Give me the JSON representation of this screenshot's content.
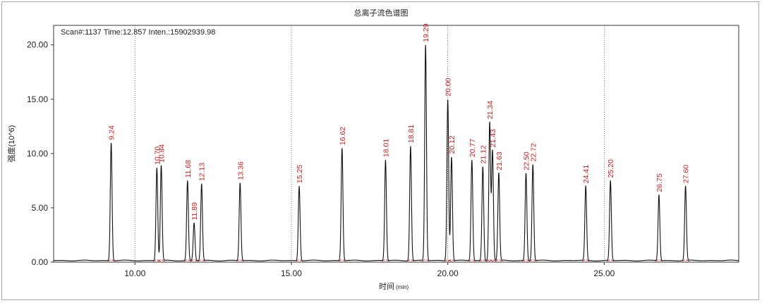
{
  "chart_data": {
    "type": "line",
    "title": "总离子流色谱图",
    "scan_info": "Scan#:1137  Time:12.857  Inten.:15902939.98",
    "xlabel": "时间",
    "xlabel_unit": "(min)",
    "ylabel": "强度(10^6)",
    "xlim": [
      7.4,
      29.3
    ],
    "ylim": [
      0,
      21.8
    ],
    "x_ticks": [
      10,
      15,
      20,
      25
    ],
    "x_tick_labels": [
      "10.00",
      "15.00",
      "20.00",
      "25.00"
    ],
    "y_ticks": [
      0,
      5,
      10,
      15,
      20
    ],
    "y_tick_labels": [
      "0.00",
      "5.00",
      "10.00",
      "15.00",
      "20.00"
    ],
    "grid": "vertical-dotted",
    "peak_label_color": "#cc1f1f",
    "line_color": "#111111",
    "baseline": 0.15,
    "peaks": [
      {
        "label": "9.24",
        "x": 9.24,
        "y": 11.0
      },
      {
        "label": "10.70",
        "x": 10.7,
        "y": 8.7
      },
      {
        "label": "10.84",
        "x": 10.84,
        "y": 8.9
      },
      {
        "label": "11.68",
        "x": 11.68,
        "y": 7.5
      },
      {
        "label": "11.89",
        "x": 11.89,
        "y": 3.6
      },
      {
        "label": "12.13",
        "x": 12.13,
        "y": 7.2
      },
      {
        "label": "13.36",
        "x": 13.36,
        "y": 7.3
      },
      {
        "label": "15.25",
        "x": 15.25,
        "y": 7.0
      },
      {
        "label": "16.62",
        "x": 16.62,
        "y": 10.5
      },
      {
        "label": "18.01",
        "x": 18.01,
        "y": 9.4
      },
      {
        "label": "18.81",
        "x": 18.81,
        "y": 10.7
      },
      {
        "label": "19.29",
        "x": 19.29,
        "y": 20.0
      },
      {
        "label": "20.00",
        "x": 20.0,
        "y": 15.0
      },
      {
        "label": "20.12",
        "x": 20.12,
        "y": 9.7
      },
      {
        "label": "20.77",
        "x": 20.77,
        "y": 9.4
      },
      {
        "label": "21.12",
        "x": 21.12,
        "y": 8.8
      },
      {
        "label": "21.34",
        "x": 21.34,
        "y": 12.9
      },
      {
        "label": "21.43",
        "x": 21.43,
        "y": 10.3
      },
      {
        "label": "21.63",
        "x": 21.63,
        "y": 8.2
      },
      {
        "label": "22.50",
        "x": 22.5,
        "y": 8.2
      },
      {
        "label": "22.72",
        "x": 22.72,
        "y": 9.0
      },
      {
        "label": "24.41",
        "x": 24.41,
        "y": 7.0
      },
      {
        "label": "25.20",
        "x": 25.2,
        "y": 7.5
      },
      {
        "label": "26.75",
        "x": 26.75,
        "y": 6.2
      },
      {
        "label": "27.60",
        "x": 27.6,
        "y": 7.0
      }
    ]
  }
}
